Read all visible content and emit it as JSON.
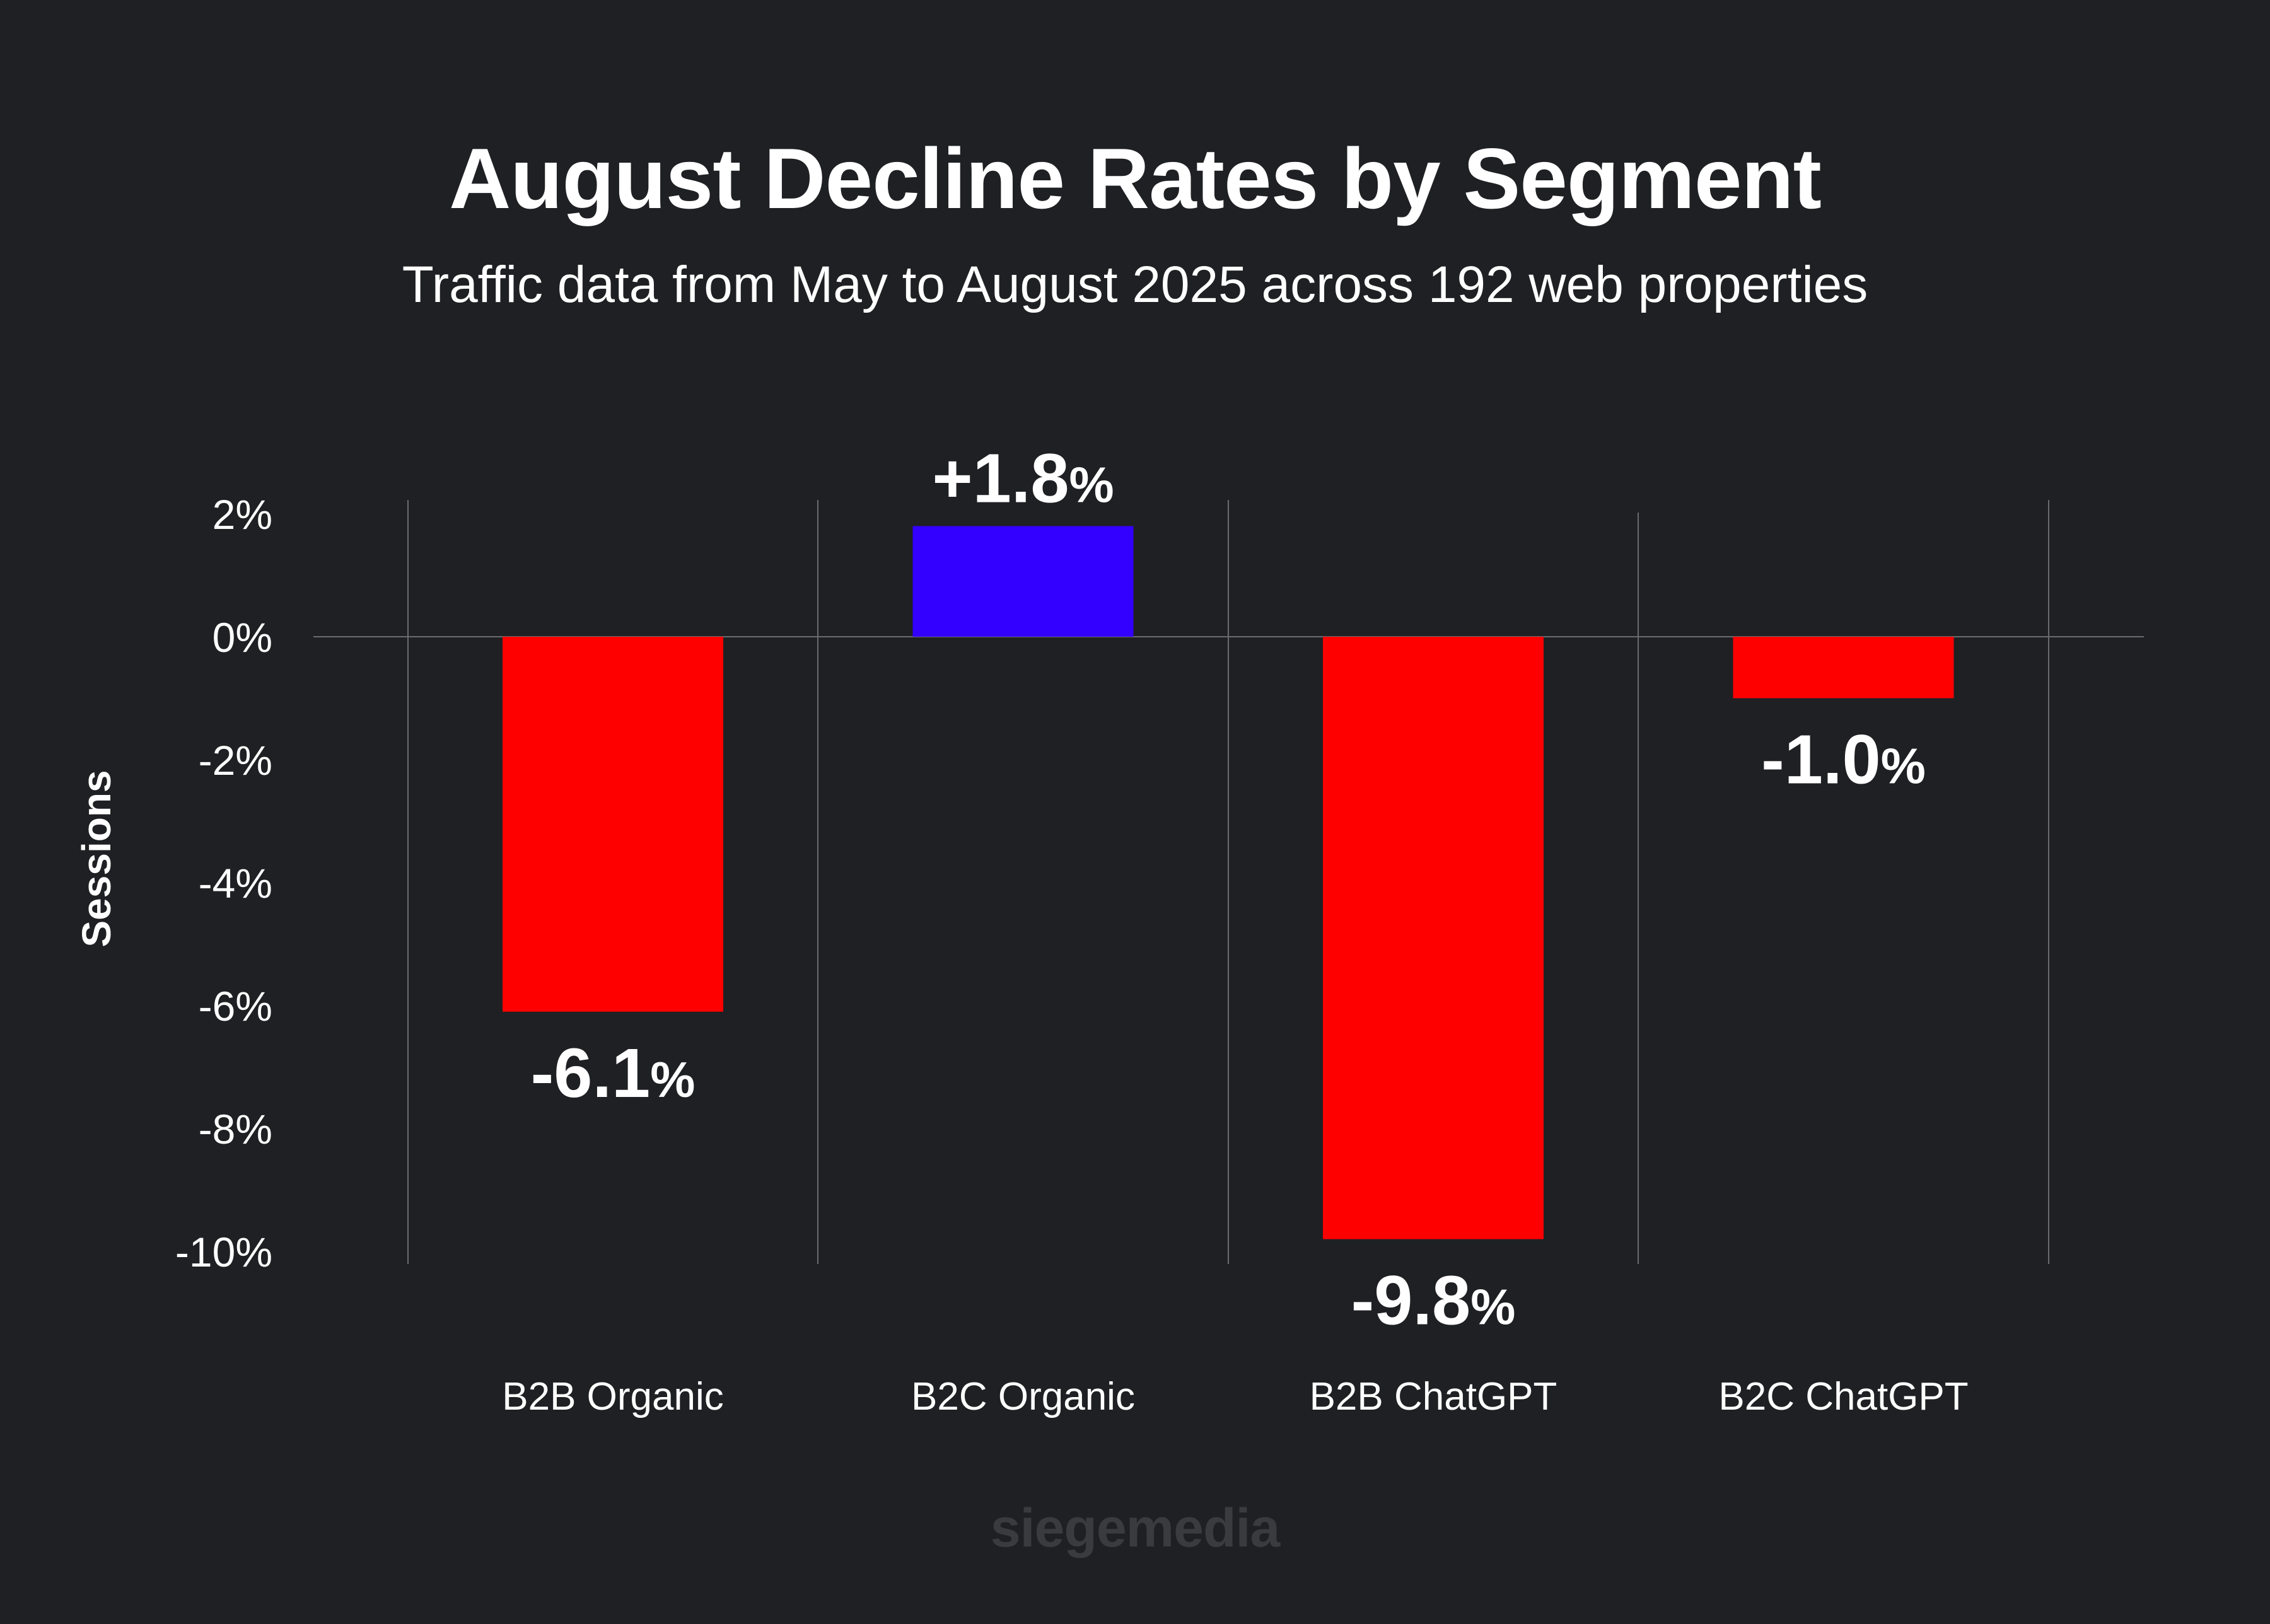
{
  "header": {
    "title": "August Decline Rates by Segment",
    "subtitle": "Traffic data from May to August 2025 across 192 web properties"
  },
  "footer": {
    "watermark": "siegemedia"
  },
  "colors": {
    "background": "#1f2023",
    "positive": "#3300ff",
    "negative": "#ff0000",
    "grid": "#6a6b6e",
    "watermark": "#3a3b3e"
  },
  "chart_data": {
    "type": "bar",
    "ylabel": "Sessions",
    "xlabel": "",
    "categories": [
      "B2B Organic",
      "B2C Organic",
      "B2B ChatGPT",
      "B2C ChatGPT"
    ],
    "values": [
      -6.1,
      1.8,
      -9.8,
      -1.0
    ],
    "data_labels": [
      "-6.1",
      "+1.8",
      "-9.8",
      "-1.0"
    ],
    "data_label_suffix": "%",
    "ylim": [
      -10,
      2
    ],
    "yticks": [
      2,
      0,
      -2,
      -4,
      -6,
      -8,
      -10
    ],
    "ytick_labels": [
      "2%",
      "0%",
      "-2%",
      "-4%",
      "-6%",
      "-8%",
      "-10%"
    ],
    "grid": "vertical",
    "legend": "none"
  }
}
